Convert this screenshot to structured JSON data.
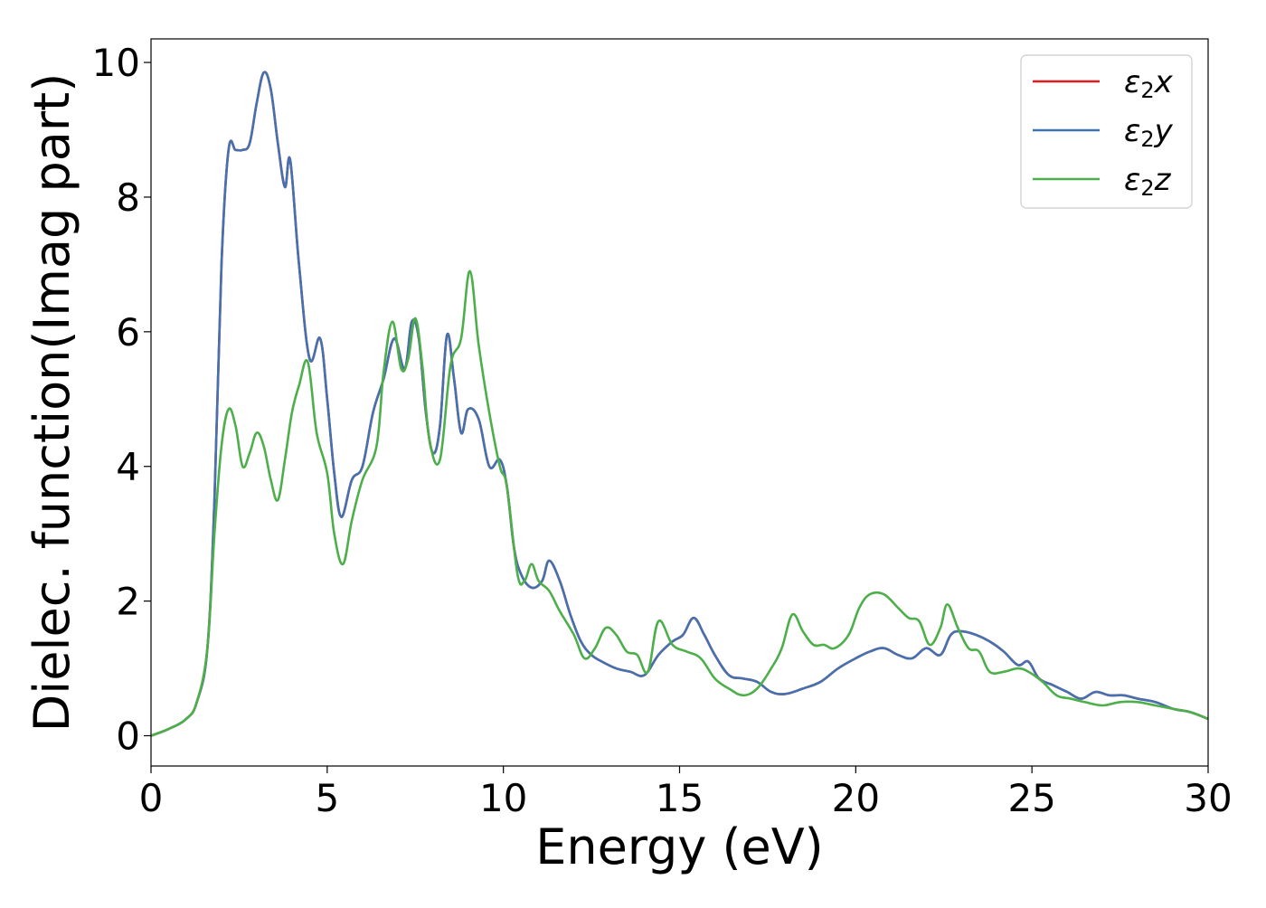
{
  "chart_data": {
    "type": "line",
    "xlabel": "Energy (eV)",
    "ylabel": "Dielec. function(Imag part)",
    "xlim": [
      0,
      30
    ],
    "ylim": [
      -0.45,
      10.35
    ],
    "xticks": [
      0,
      5,
      10,
      15,
      20,
      25,
      30
    ],
    "xtick_labels": [
      "0",
      "5",
      "10",
      "15",
      "20",
      "25",
      "30"
    ],
    "yticks": [
      0,
      2,
      4,
      6,
      8,
      10
    ],
    "ytick_labels": [
      "0",
      "2",
      "4",
      "6",
      "8",
      "10"
    ],
    "grid": false,
    "legend_position": "top-right",
    "series": [
      {
        "name": "ε2x",
        "symbol": "ε",
        "subscript": "2",
        "axis": "x",
        "color": "#e41a1c",
        "x": [
          0,
          0.5,
          1.0,
          1.3,
          1.6,
          1.8,
          2.0,
          2.2,
          2.4,
          2.6,
          2.8,
          3.0,
          3.2,
          3.4,
          3.6,
          3.8,
          3.95,
          4.2,
          4.5,
          4.8,
          5.0,
          5.2,
          5.4,
          5.7,
          6.0,
          6.3,
          6.6,
          6.9,
          7.2,
          7.4,
          7.6,
          7.8,
          8.0,
          8.2,
          8.4,
          8.6,
          8.8,
          9.0,
          9.3,
          9.6,
          9.9,
          10.1,
          10.3,
          10.5,
          10.8,
          11.1,
          11.3,
          11.6,
          11.9,
          12.2,
          12.5,
          12.8,
          13.2,
          13.6,
          14.0,
          14.4,
          14.8,
          15.1,
          15.4,
          15.7,
          16.0,
          16.4,
          16.8,
          17.2,
          17.6,
          18.0,
          18.5,
          19.0,
          19.5,
          20.0,
          20.4,
          20.8,
          21.2,
          21.6,
          22.0,
          22.4,
          22.7,
          23.0,
          23.4,
          23.8,
          24.2,
          24.6,
          24.9,
          25.2,
          25.6,
          26.0,
          26.4,
          26.8,
          27.2,
          27.6,
          28.0,
          28.5,
          29.0,
          29.5,
          30.0
        ],
        "y": [
          0.0,
          0.1,
          0.25,
          0.5,
          1.3,
          3.5,
          7.0,
          8.7,
          8.7,
          8.7,
          8.8,
          9.4,
          9.85,
          9.6,
          8.8,
          8.15,
          8.55,
          7.0,
          5.6,
          5.9,
          5.0,
          3.9,
          3.25,
          3.8,
          4.0,
          4.8,
          5.3,
          5.9,
          5.45,
          6.15,
          5.9,
          4.8,
          4.2,
          4.6,
          5.95,
          5.3,
          4.5,
          4.85,
          4.7,
          4.0,
          4.1,
          3.7,
          2.8,
          2.4,
          2.2,
          2.3,
          2.6,
          2.3,
          1.8,
          1.4,
          1.2,
          1.1,
          1.0,
          0.95,
          0.9,
          1.2,
          1.4,
          1.5,
          1.75,
          1.5,
          1.2,
          0.9,
          0.85,
          0.8,
          0.65,
          0.62,
          0.7,
          0.8,
          1.0,
          1.15,
          1.25,
          1.3,
          1.2,
          1.15,
          1.3,
          1.2,
          1.5,
          1.55,
          1.5,
          1.4,
          1.25,
          1.05,
          1.1,
          0.85,
          0.75,
          0.65,
          0.55,
          0.65,
          0.6,
          0.6,
          0.55,
          0.5,
          0.4,
          0.35,
          0.25
        ]
      },
      {
        "name": "ε2y",
        "symbol": "ε",
        "subscript": "2",
        "axis": "y",
        "color": "#4472b0",
        "x": [
          0,
          0.5,
          1.0,
          1.3,
          1.6,
          1.8,
          2.0,
          2.2,
          2.4,
          2.6,
          2.8,
          3.0,
          3.2,
          3.4,
          3.6,
          3.8,
          3.95,
          4.2,
          4.5,
          4.8,
          5.0,
          5.2,
          5.4,
          5.7,
          6.0,
          6.3,
          6.6,
          6.9,
          7.2,
          7.4,
          7.6,
          7.8,
          8.0,
          8.2,
          8.4,
          8.6,
          8.8,
          9.0,
          9.3,
          9.6,
          9.9,
          10.1,
          10.3,
          10.5,
          10.8,
          11.1,
          11.3,
          11.6,
          11.9,
          12.2,
          12.5,
          12.8,
          13.2,
          13.6,
          14.0,
          14.4,
          14.8,
          15.1,
          15.4,
          15.7,
          16.0,
          16.4,
          16.8,
          17.2,
          17.6,
          18.0,
          18.5,
          19.0,
          19.5,
          20.0,
          20.4,
          20.8,
          21.2,
          21.6,
          22.0,
          22.4,
          22.7,
          23.0,
          23.4,
          23.8,
          24.2,
          24.6,
          24.9,
          25.2,
          25.6,
          26.0,
          26.4,
          26.8,
          27.2,
          27.6,
          28.0,
          28.5,
          29.0,
          29.5,
          30.0
        ],
        "y": [
          0.0,
          0.1,
          0.25,
          0.5,
          1.3,
          3.5,
          7.0,
          8.7,
          8.7,
          8.7,
          8.8,
          9.4,
          9.85,
          9.6,
          8.8,
          8.15,
          8.55,
          7.0,
          5.6,
          5.9,
          5.0,
          3.9,
          3.25,
          3.8,
          4.0,
          4.8,
          5.3,
          5.9,
          5.45,
          6.15,
          5.9,
          4.8,
          4.2,
          4.6,
          5.95,
          5.3,
          4.5,
          4.85,
          4.7,
          4.0,
          4.1,
          3.7,
          2.8,
          2.4,
          2.2,
          2.3,
          2.6,
          2.3,
          1.8,
          1.4,
          1.2,
          1.1,
          1.0,
          0.95,
          0.9,
          1.2,
          1.4,
          1.5,
          1.75,
          1.5,
          1.2,
          0.9,
          0.85,
          0.8,
          0.65,
          0.62,
          0.7,
          0.8,
          1.0,
          1.15,
          1.25,
          1.3,
          1.2,
          1.15,
          1.3,
          1.2,
          1.5,
          1.55,
          1.5,
          1.4,
          1.25,
          1.05,
          1.1,
          0.85,
          0.75,
          0.65,
          0.55,
          0.65,
          0.6,
          0.6,
          0.55,
          0.5,
          0.4,
          0.35,
          0.25
        ]
      },
      {
        "name": "ε2z",
        "symbol": "ε",
        "subscript": "2",
        "axis": "z",
        "color": "#4daf4a",
        "x": [
          0,
          0.5,
          1.0,
          1.3,
          1.6,
          1.8,
          2.0,
          2.2,
          2.4,
          2.6,
          2.8,
          3.0,
          3.2,
          3.4,
          3.6,
          3.8,
          4.0,
          4.2,
          4.45,
          4.7,
          5.0,
          5.2,
          5.45,
          5.7,
          6.0,
          6.4,
          6.6,
          6.85,
          7.1,
          7.3,
          7.5,
          7.7,
          7.9,
          8.2,
          8.5,
          8.8,
          9.05,
          9.3,
          9.6,
          9.9,
          10.1,
          10.4,
          10.6,
          10.8,
          11.0,
          11.3,
          11.6,
          12.0,
          12.3,
          12.6,
          12.9,
          13.2,
          13.5,
          13.8,
          14.1,
          14.4,
          14.8,
          15.2,
          15.6,
          16.0,
          16.4,
          16.8,
          17.2,
          17.6,
          17.9,
          18.2,
          18.5,
          18.8,
          19.1,
          19.4,
          19.8,
          20.1,
          20.4,
          20.8,
          21.2,
          21.5,
          21.8,
          22.1,
          22.4,
          22.6,
          22.9,
          23.2,
          23.5,
          23.8,
          24.2,
          24.6,
          24.9,
          25.3,
          25.7,
          26.1,
          26.5,
          27.0,
          27.5,
          28.0,
          28.5,
          29.0,
          29.5,
          30.0
        ],
        "y": [
          0.0,
          0.1,
          0.25,
          0.5,
          1.3,
          3.0,
          4.3,
          4.85,
          4.6,
          4.0,
          4.2,
          4.5,
          4.3,
          3.8,
          3.5,
          4.1,
          4.8,
          5.2,
          5.55,
          4.5,
          3.9,
          3.0,
          2.55,
          3.2,
          3.8,
          4.3,
          5.4,
          6.15,
          5.45,
          5.6,
          6.2,
          5.5,
          4.4,
          4.1,
          5.5,
          5.9,
          6.9,
          5.8,
          4.8,
          4.0,
          3.7,
          2.4,
          2.3,
          2.55,
          2.3,
          2.15,
          1.85,
          1.5,
          1.15,
          1.3,
          1.6,
          1.5,
          1.25,
          1.2,
          0.95,
          1.7,
          1.35,
          1.25,
          1.15,
          0.85,
          0.7,
          0.6,
          0.7,
          1.0,
          1.3,
          1.8,
          1.55,
          1.35,
          1.35,
          1.3,
          1.5,
          1.9,
          2.1,
          2.1,
          1.9,
          1.75,
          1.7,
          1.35,
          1.6,
          1.95,
          1.6,
          1.3,
          1.25,
          0.95,
          0.95,
          1.0,
          0.95,
          0.8,
          0.6,
          0.55,
          0.5,
          0.45,
          0.5,
          0.5,
          0.45,
          0.4,
          0.35,
          0.25
        ]
      }
    ]
  }
}
